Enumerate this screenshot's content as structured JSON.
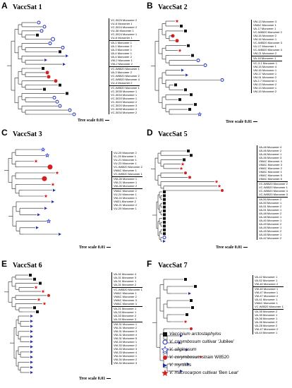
{
  "panels": [
    {
      "letter": "A",
      "title": "VaccSat 1",
      "scale": "Tree scale 0.01",
      "groups": [
        [
          "VC-3029 Monomer 2",
          "VU-6 Monomer 1",
          "VC-3024 Monomer 2",
          "VU-38 Monomer 1",
          "VC-3024 Monomer 1",
          "VU-6 Monomer 1"
        ],
        [
          "VA-1 Monomer 1",
          "VA-1 Monomer 2",
          "VA-3 Monomer 1",
          "VA-4 Monomer 1",
          "VA-4 Monomer 2",
          "VM-2 Monomer 1",
          "VM-2 Monomer 2"
        ],
        [
          "VC-W8520 Monomer 1",
          "VA-3 Monomer 2",
          "VC-W8520 Monomer 2",
          "VC-W8520 Monomer 4",
          "VU-4 Monomer 2"
        ],
        [
          "VC-W8520 Monomer 1",
          "VC-3035 Monomer 1",
          "VC-3034 Monomer 1",
          "VC-3020 Monomer 1",
          "VC-3020 Monomer 2",
          "VC-3020 Monomer 3",
          "VC-3035 Monomer 2",
          "VC-3034 Monomer 2"
        ]
      ]
    },
    {
      "letter": "B",
      "title": "VaccSat 2",
      "scale": "Tree scale 0.01",
      "groups": [
        [
          "VM-13 Monomer 3",
          "VMAC Monomer 1",
          "VA-17 Monomer 1",
          "VC-W8520 Monomer 2",
          "VM-16 Monomer 2",
          "VM-16 Monomer 1",
          "VC-W8520 Monomer 3",
          "VU-17 Monomer 1",
          "VC-W8520 Monomer 4",
          "VM-21 Monomer 2"
        ],
        [
          "VA-16 Monomer 1"
        ],
        [
          "VC-3-1 Monomer 1",
          "VM-15 Monomer 4",
          "VM-16 Monomer 1",
          "VM-17 Monomer 1",
          "VM-91 Monomer 2",
          "VA-2-7 Monomer 1",
          "VM-13 Monomer 2",
          "VM-13 Monomer 1",
          "VM-15 Monomer 2"
        ]
      ]
    },
    {
      "letter": "C",
      "title": "VaccSat 3",
      "scale": "Tree scale 0.01",
      "groups": [
        [
          "VU-29 Monomer 2",
          "VL-25 Monomer 1",
          "VU-21 Monomer 1",
          "VU-23 Monomer 1",
          "VC-W8520 Monomer 2",
          "VMAC Monomer 1",
          "VC-W8520 Monomer 1"
        ],
        [
          "VM-28 Monomer 1",
          "VM-21 Monomer 1",
          "VM-28 Monomer 2"
        ],
        [
          "VMAC Monomer 2",
          "VU-24 Monomer 1",
          "VM-24 Monomer 1",
          "VM21-Monomer 2",
          "VM-21 Monomer 2",
          "VU-29 Monomer 1"
        ]
      ]
    },
    {
      "letter": "D",
      "title": "VaccSat 5",
      "scale": "Tree scale 0.01",
      "groups": [
        [
          "VA-46 Monomer 4",
          "VA-46 Monomer 2",
          "VA-46 Monomer 1",
          "VA-46 Monomer 3",
          "VMAC Monomer 4",
          "VMAC Monomer 3",
          "VMAC Monomer 2",
          "VMAC Monomer 1",
          "VMAC Monomer 5",
          "VMAC Monomer 6"
        ],
        [
          "VC-W8520 Monomer 2",
          "VC-W8520 Monomer 1",
          "VC-W8520 Monomer 4",
          "VC-W8520 Monomer 3"
        ],
        [
          "VA-50 Monomer 2",
          "VA-50 Monomer 1",
          "VA-51 Monomer 2",
          "VA-51 Monomer 1",
          "VA-48 Monomer 2",
          "VA-48 Monomer 1",
          "VA-40 Monomer 1",
          "VA-49 Monomer 2",
          "VA-49 Monomer 1",
          "VA-45 Monomer 2",
          "VA-45 Monomer 1",
          "VA-42 Monomer 2"
        ]
      ]
    },
    {
      "letter": "E",
      "title": "VaccSat 6",
      "scale": "Tree scale 0.01",
      "groups": [
        [
          "VA-31 Monomer 4",
          "VA-31 Monomer 3",
          "VA-31 Monomer 1",
          "VA-31 Monomer 2"
        ],
        [
          "VC-W8520 Monomer 1",
          "VMAC Monomer 1",
          "VMAC Monomer 2",
          "VMAC Monomer 3",
          "VMAC Monomer 4"
        ],
        [
          "VA-21 Monomer 1",
          "VA-33 Monomer 1",
          "VA-33 Monomer 2",
          "VA-33 Monomer 3"
        ],
        [
          "VM-31 Monomer 1",
          "VM-31 Monomer 2",
          "VM-31 Monomer 3",
          "VM-31 Monomer 4",
          "VM-31 Monomer 5",
          "VM-33 Monomer 1",
          "VM-33 Monomer 2",
          "VM-33 Monomer 3",
          "VM-33 Monomer 4",
          "VM-34 Monomer 1",
          "VM-34 Monomer 2",
          "VM-34 Monomer 3"
        ]
      ]
    },
    {
      "letter": "F",
      "title": "VaccSat 7",
      "scale": "Tree scale 0.01",
      "groups": [
        [
          "VA-42 Monomer 1",
          "VA-52 Monomer 1",
          "VM-40 Monomer 2"
        ],
        [
          "VM-40 Monomer 1",
          "VM-47 Monomer 1",
          "VM-47 Monomer 2",
          "VA-41 Monomer 1",
          "VMAC Monomer 1",
          "VC W8520 Monomer 1"
        ],
        [
          "VA-35 Monomer 2",
          "VA-35 Monomer 1",
          "VA-36 Monomer 1",
          "VA-36 Monomer 2",
          "VA-28 Monomer 2",
          "VM-47 Monomer 2",
          "VA-44 Monomer 1"
        ]
      ]
    }
  ],
  "legend": [
    {
      "symbol": "square",
      "color": "#111111",
      "text": "Vaccinium arctostaphylos",
      "suffix": ""
    },
    {
      "symbol": "circle-open",
      "color": "#1f2fb0",
      "text": "V. corymbosum",
      "suffix": " cultivar 'Jubilee'"
    },
    {
      "symbol": "star-open",
      "color": "#2a3bd0",
      "text": "V. uliginosum",
      "suffix": ""
    },
    {
      "symbol": "circle",
      "color": "#d42020",
      "text": "V. corymbosum",
      "suffix": " strain W8520"
    },
    {
      "symbol": "triangle",
      "color": "#1f2fb0",
      "text": "V. myrtillus",
      "suffix": ""
    },
    {
      "symbol": "star",
      "color": "#d42020",
      "text": "V. macrocarpon",
      "suffix": " cultivar 'Ben Lear'"
    }
  ]
}
